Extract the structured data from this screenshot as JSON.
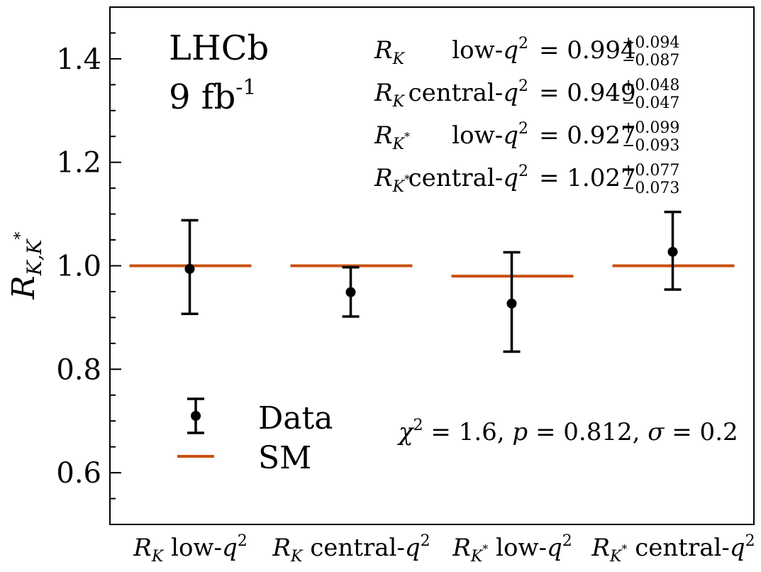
{
  "chart_data": {
    "type": "scatter",
    "ylabel": {
      "base": "R",
      "sub": "K,K",
      "sup": "*"
    },
    "ylim": [
      0.5,
      1.5
    ],
    "yticks": [
      0.6,
      0.8,
      1.0,
      1.2,
      1.4
    ],
    "ytick_labels": [
      "0.6",
      "0.8",
      "1.0",
      "1.2",
      "1.4"
    ],
    "yminor_step": 0.05,
    "grid": false,
    "experiment": "LHCb",
    "luminosity": {
      "value": "9 fb",
      "sup": "-1"
    },
    "categories": [
      {
        "base": "R",
        "sub": "K",
        "subsup": "",
        "rest": " low-",
        "qvar": "q",
        "qsup": "2"
      },
      {
        "base": "R",
        "sub": "K",
        "subsup": "",
        "rest": " central-",
        "qvar": "q",
        "qsup": "2"
      },
      {
        "base": "R",
        "sub": "K",
        "subsup": "*",
        "rest": " low-",
        "qvar": "q",
        "qsup": "2"
      },
      {
        "base": "R",
        "sub": "K",
        "subsup": "*",
        "rest": " central-",
        "qvar": "q",
        "qsup": "2"
      }
    ],
    "series": [
      {
        "name": "Data",
        "color": "#000000",
        "values": [
          0.994,
          0.949,
          0.927,
          1.027
        ],
        "err_plus": [
          0.094,
          0.048,
          0.099,
          0.077
        ],
        "err_minus": [
          0.087,
          0.047,
          0.093,
          0.073
        ]
      },
      {
        "name": "SM",
        "color": "#c8500f",
        "values": [
          1.0,
          1.0,
          0.98,
          1.0
        ]
      }
    ],
    "results": [
      {
        "base": "R",
        "sub": "K",
        "subsup": "",
        "region": "low-",
        "qvar": "q",
        "qsup": "2",
        "eq": "= ",
        "value": "0.994",
        "plus": "+0.094",
        "minus": "−0.087"
      },
      {
        "base": "R",
        "sub": "K",
        "subsup": "",
        "region": "central-",
        "qvar": "q",
        "qsup": "2",
        "eq": "= ",
        "value": "0.949",
        "plus": "+0.048",
        "minus": "−0.047"
      },
      {
        "base": "R",
        "sub": "K",
        "subsup": "*",
        "region": "low-",
        "qvar": "q",
        "qsup": "2",
        "eq": "= ",
        "value": "0.927",
        "plus": "+0.099",
        "minus": "−0.093"
      },
      {
        "base": "R",
        "sub": "K",
        "subsup": "*",
        "region": "central-",
        "qvar": "q",
        "qsup": "2",
        "eq": "= ",
        "value": "1.027",
        "plus": "+0.077",
        "minus": "−0.073"
      }
    ],
    "fit": {
      "chi_sym": "χ",
      "chi_sup": "2",
      "chi_val": " = 1.6, ",
      "p_sym": "p",
      "p_val": " = 0.812, ",
      "s_sym": "σ",
      "s_val": " = 0.2"
    },
    "legend": {
      "placement": "lower-left",
      "entries": [
        "Data",
        "SM"
      ]
    }
  }
}
